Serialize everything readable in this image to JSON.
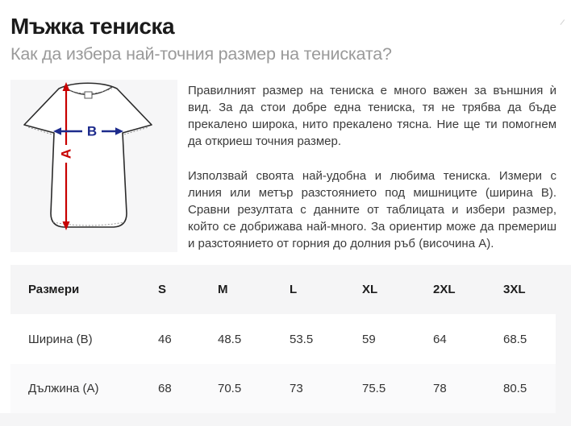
{
  "page": {
    "title": "Мъжка тениска",
    "subtitle": "Как да избера най-точния размер на тениската?"
  },
  "diagram": {
    "label_a": "A",
    "label_b": "B",
    "arrow_a_color": "#c80000",
    "arrow_b_color": "#1d2b8c",
    "background": "#f6f6f7"
  },
  "paragraphs": [
    {
      "lines": [
        "Правилният размер на тениска е много важен за външния ѝ",
        "вид. За да стои добре една тениска, тя не трябва да бъде",
        "прекалено широка, нито прекалено тясна. Ние ще ти помогнем",
        "да откриеш точния размер."
      ]
    },
    {
      "lines": [
        "Използвай своята най-удобна и любима тениска. Измери с",
        "линия или метър разстоянието под мишниците (ширина B).",
        "Сравни резултата с данните от таблицата и избери размер,",
        "който се добрижава най-много. За ориентир може да премериш",
        "и разстоянието от горния до долния ръб (височина А)."
      ]
    }
  ],
  "table": {
    "headers": [
      "Размери",
      "S",
      "M",
      "L",
      "XL",
      "2XL",
      "3XL"
    ],
    "rows": [
      {
        "label": "Ширина (B)",
        "values": [
          "46",
          "48.5",
          "53.5",
          "59",
          "64",
          "68.5"
        ]
      },
      {
        "label": "Дължина (А)",
        "values": [
          "68",
          "70.5",
          "73",
          "75.5",
          "78",
          "80.5"
        ]
      }
    ]
  },
  "colors": {
    "section_gray": "#f5f5f6",
    "row_stripe_white": "#ffffff",
    "title_color": "#1b1b1b",
    "subtitle_color": "#9a9a9a",
    "body_text": "#3b3b3b",
    "accent_red": "#c80000",
    "accent_blue": "#1d2b8c"
  }
}
